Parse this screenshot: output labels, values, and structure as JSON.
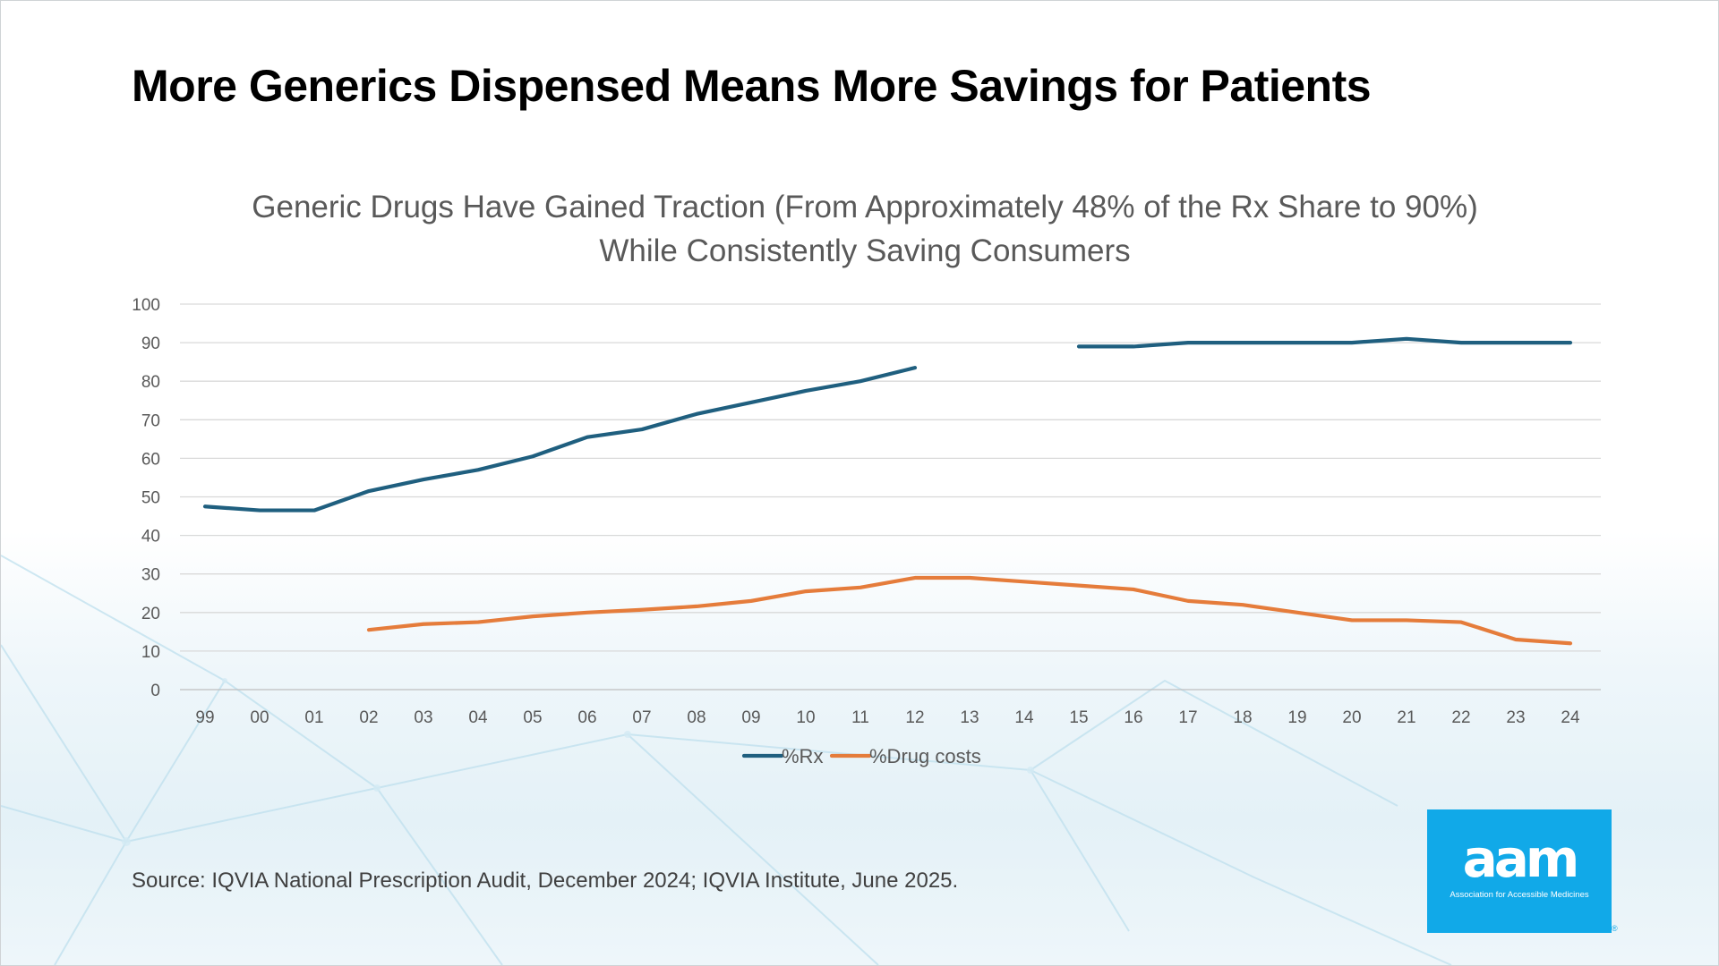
{
  "slide": {
    "title": "More Generics Dispensed Means More Savings for Patients",
    "source": "Source: IQVIA National Prescription Audit, December 2024; IQVIA Institute, June 2025."
  },
  "logo": {
    "word": "aam",
    "tagline": "Association for Accessible Medicines",
    "registered": "®",
    "color": "#11a9e8"
  },
  "chart_data": {
    "type": "line",
    "title": "Generic Drugs Have Gained Traction (From Approximately 48% of the Rx Share to 90%) While Consistently Saving Consumers",
    "xlabel": "",
    "ylabel": "",
    "x": [
      "99",
      "00",
      "01",
      "02",
      "03",
      "04",
      "05",
      "06",
      "07",
      "08",
      "09",
      "10",
      "11",
      "12",
      "13",
      "14",
      "15",
      "16",
      "17",
      "18",
      "19",
      "20",
      "21",
      "22",
      "23",
      "24"
    ],
    "ylim": [
      0,
      100
    ],
    "yticks": [
      0,
      10,
      20,
      30,
      40,
      50,
      60,
      70,
      80,
      90,
      100
    ],
    "grid": true,
    "legend_position": "bottom",
    "series": [
      {
        "name": "%Rx",
        "color": "#1f5f7f",
        "values": [
          47.5,
          46.5,
          46.5,
          51.5,
          54.5,
          57,
          60.5,
          65.5,
          67.5,
          71.5,
          74.5,
          77.5,
          80,
          83.5,
          null,
          null,
          89,
          89,
          90,
          90,
          90,
          90,
          91,
          90,
          90,
          90
        ]
      },
      {
        "name": "%Drug costs",
        "color": "#e57c3b",
        "values": [
          null,
          null,
          null,
          15.5,
          17,
          17.5,
          19,
          20,
          20.7,
          21.6,
          23,
          25.5,
          26.5,
          29,
          29,
          28,
          27,
          26,
          23,
          22,
          20,
          18,
          18,
          17.5,
          13,
          12
        ]
      }
    ]
  }
}
